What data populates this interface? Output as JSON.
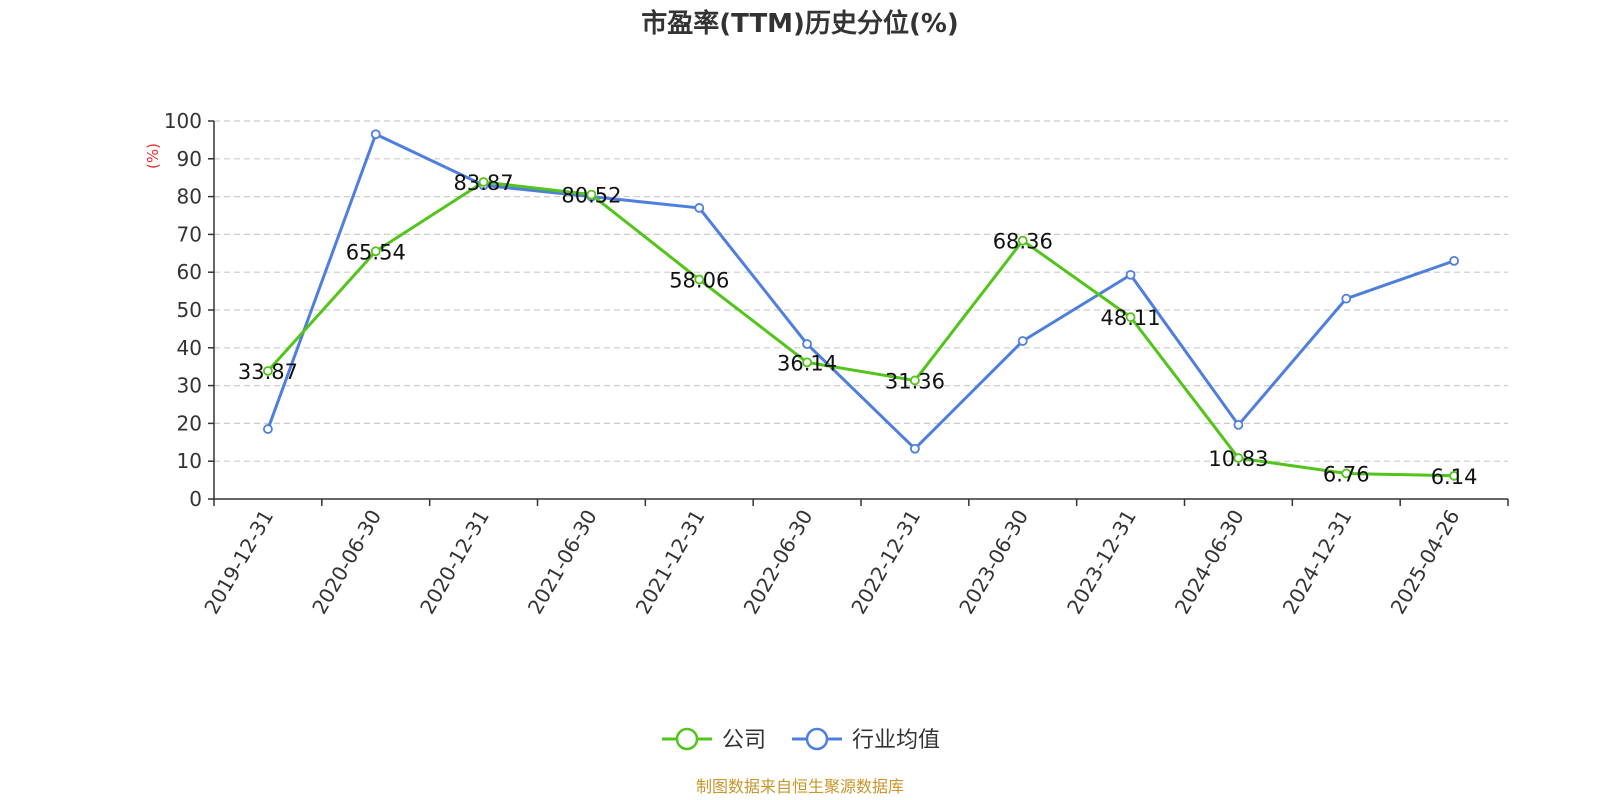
{
  "chart_data": {
    "type": "line",
    "title": "市盈率(TTM)历史分位(%)",
    "ylabel": "(%)",
    "ylim": [
      0,
      100
    ],
    "yticks": [
      0,
      10,
      20,
      30,
      40,
      50,
      60,
      70,
      80,
      90,
      100
    ],
    "grid": true,
    "legend_position": "bottom-center",
    "categories": [
      "2019-12-31",
      "2020-06-30",
      "2020-12-31",
      "2021-06-30",
      "2021-12-31",
      "2022-06-30",
      "2022-12-31",
      "2023-06-30",
      "2023-12-31",
      "2024-06-30",
      "2024-12-31",
      "2025-04-26"
    ],
    "series": [
      {
        "name": "公司",
        "color": "#52c41a",
        "values": [
          33.87,
          65.54,
          83.87,
          80.52,
          58.06,
          36.14,
          31.36,
          68.36,
          48.11,
          10.83,
          6.76,
          6.14
        ],
        "labels": [
          "33.87",
          "65.54",
          "83.87",
          "80.52",
          "58.06",
          "36.14",
          "31.36",
          "68.36",
          "48.11",
          "10.83",
          "6.76",
          "6.14"
        ]
      },
      {
        "name": "行业均值",
        "color": "#4e7fde",
        "values": [
          18.5,
          96.5,
          83.0,
          80.0,
          77.0,
          41.0,
          13.3,
          41.8,
          59.3,
          19.6,
          53.0,
          63.0
        ]
      }
    ],
    "source": "制图数据来自恒生聚源数据库",
    "source_color": "#c8962a",
    "ylabel_color": "#e03030"
  }
}
